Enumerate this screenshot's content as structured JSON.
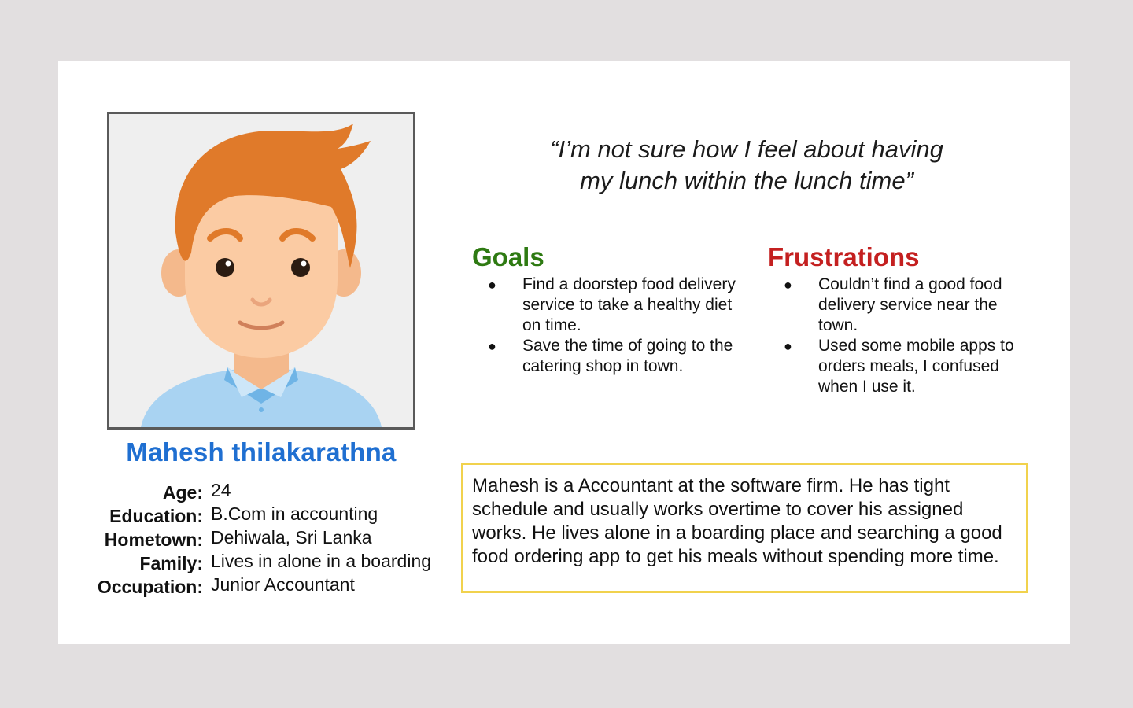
{
  "persona": {
    "name": "Mahesh thilakarathna",
    "quote_line1": "“I’m not sure how I feel about having",
    "quote_line2": "my lunch within the lunch time”",
    "info": [
      {
        "label": "Age:",
        "value": "24"
      },
      {
        "label": "Education:",
        "value": "B.Com in accounting"
      },
      {
        "label": "Hometown:",
        "value": "Dehiwala, Sri Lanka"
      },
      {
        "label": "Family:",
        "value": "Lives in alone in a boarding"
      },
      {
        "label": "Occupation:",
        "value": "Junior Accountant"
      }
    ],
    "bio": "Mahesh is a Accountant  at the software firm. He has tight schedule and usually works overtime to cover his assigned works. He lives alone in a boarding place and  searching a good food ordering app to get his meals without spending more time."
  },
  "goals": {
    "title": "Goals",
    "items": [
      "Find a doorstep food delivery service to take  a healthy diet on time.",
      "Save the time of going to the catering shop in town."
    ]
  },
  "frustrations": {
    "title": "Frustrations",
    "items": [
      "Couldn’t find a good food delivery service near the town.",
      "Used some mobile apps to orders meals, I confused when I use it."
    ]
  },
  "bullet_glyph": "●",
  "colors": {
    "background": "#e2dfe0",
    "name": "#1f6fd1",
    "goals_title": "#2e7a12",
    "frustrations_title": "#c42020",
    "bio_border": "#f1d24d"
  },
  "icons": {
    "avatar": "cartoon-man-avatar-icon"
  }
}
